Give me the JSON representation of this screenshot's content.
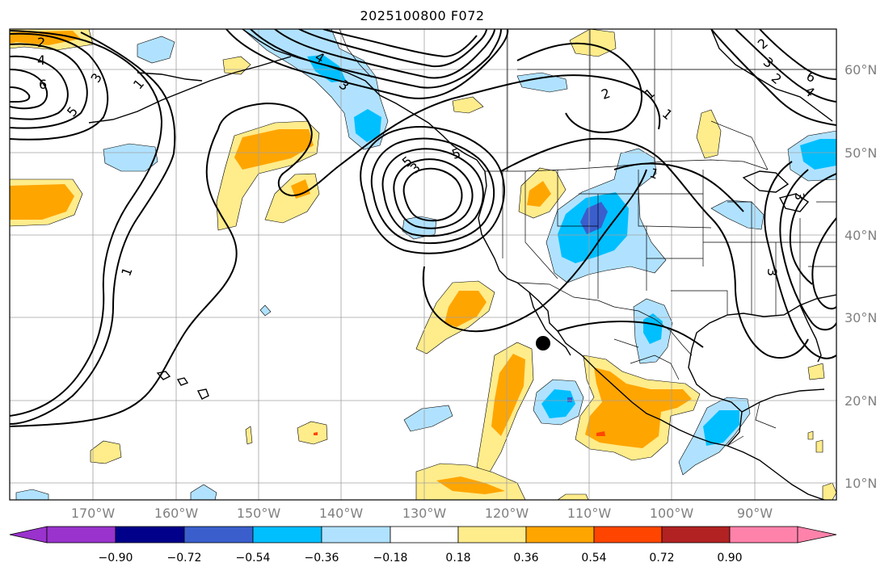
{
  "title": "2025100800 F072",
  "lat_labels": [
    "60°N",
    "50°N",
    "40°N",
    "30°N",
    "20°N",
    "10°N"
  ],
  "lon_labels": [
    "170°W",
    "160°W",
    "150°W",
    "140°W",
    "130°W",
    "120°W",
    "110°W",
    "100°W",
    "90°W"
  ],
  "colorbar": {
    "ticks": [
      "−0.90",
      "−0.72",
      "−0.54",
      "−0.36",
      "−0.18",
      "0.18",
      "0.36",
      "0.54",
      "0.72",
      "0.90"
    ],
    "colors": [
      "#9a32cd",
      "#00008b",
      "#3a5fcd",
      "#00bfff",
      "#b0e2ff",
      "#ffffff",
      "#ffec8b",
      "#ffa500",
      "#ff4500",
      "#b22222",
      "#ff82ab"
    ]
  },
  "contour_labels": [
    "2",
    "4",
    "6",
    "3",
    "5",
    "1",
    "1",
    "3",
    "4",
    "5",
    "3",
    "5",
    "2",
    "1",
    "1",
    "2",
    "1",
    "2",
    "3",
    "6",
    "4",
    "3",
    "3"
  ],
  "marker": {
    "lat": 27,
    "lon": "115°W"
  }
}
